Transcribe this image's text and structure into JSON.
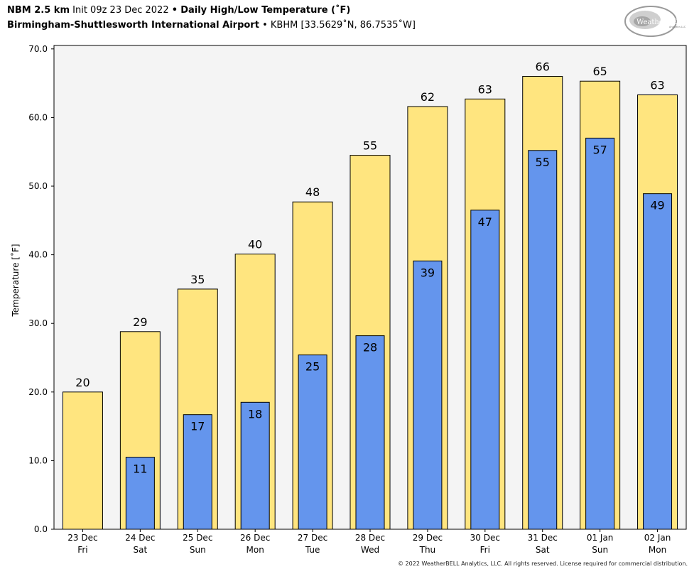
{
  "header": {
    "model": "NBM 2.5 km",
    "init": "Init 09z 23 Dec 2022",
    "bullet": "•",
    "product": "Daily High/Low Temperature (˚F)",
    "station_name": "Birmingham-Shuttlesworth International Airport",
    "station_info": "KBHM [33.5629˚N, 86.7535˚W]"
  },
  "logo": {
    "text": "WeatherBELL",
    "sub": "Analytics LLC"
  },
  "footer": {
    "copyright": "© 2022 WeatherBELL Analytics, LLC. All rights reserved. License required for commercial distribution."
  },
  "colors": {
    "high": "#FFE57F",
    "low": "#6495ED",
    "plot_bg": "#F4F4F4",
    "outline": "#000000"
  },
  "chart_data": {
    "type": "bar",
    "ylabel": "Temperature [˚F]",
    "ylim": [
      0,
      70.5
    ],
    "yticks": [
      "0.0",
      "10.0",
      "20.0",
      "30.0",
      "40.0",
      "50.0",
      "60.0",
      "70.0"
    ],
    "categories": [
      "23 Dec",
      "24 Dec",
      "25 Dec",
      "26 Dec",
      "27 Dec",
      "28 Dec",
      "29 Dec",
      "30 Dec",
      "31 Dec",
      "01 Jan",
      "02 Jan"
    ],
    "weekdays": [
      "Fri",
      "Sat",
      "Sun",
      "Mon",
      "Tue",
      "Wed",
      "Thu",
      "Fri",
      "Sat",
      "Sun",
      "Mon"
    ],
    "grid": false,
    "series": [
      {
        "values": [
          20,
          28.8,
          35,
          40.1,
          47.7,
          54.5,
          61.6,
          62.7,
          66,
          65.3,
          63.3
        ],
        "labels": [
          "20",
          "29",
          "35",
          "40",
          "48",
          "55",
          "62",
          "63",
          "66",
          "65",
          "63"
        ]
      },
      {
        "values": [
          null,
          10.5,
          16.7,
          18.5,
          25.4,
          28.2,
          39.1,
          46.5,
          55.2,
          57,
          48.9
        ],
        "labels": [
          "",
          "11",
          "17",
          "18",
          "25",
          "28",
          "39",
          "47",
          "55",
          "57",
          "49"
        ]
      }
    ]
  }
}
